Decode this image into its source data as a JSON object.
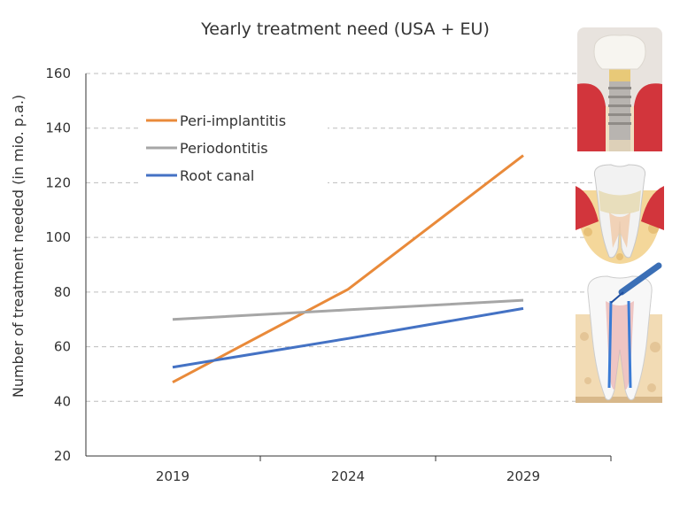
{
  "chart_data": {
    "type": "line",
    "title": "Yearly treatment need (USA + EU)",
    "xlabel": "",
    "ylabel": "Number of treatment needed (in mio. p.a.)",
    "categories": [
      "2019",
      "2024",
      "2029"
    ],
    "ylim": [
      20,
      160
    ],
    "yticks": [
      20,
      40,
      60,
      80,
      100,
      120,
      140,
      160
    ],
    "grid": true,
    "legend_position": "top-left",
    "series": [
      {
        "name": "Peri-implantitis",
        "color": "#e98a3a",
        "values": [
          47,
          81,
          130
        ]
      },
      {
        "name": "Periodontitis",
        "color": "#a6a6a6",
        "values": [
          70,
          73.5,
          77
        ]
      },
      {
        "name": "Root canal",
        "color": "#4472c4",
        "values": [
          52.5,
          63,
          74
        ]
      }
    ]
  },
  "illustrations": [
    {
      "name": "peri-implantitis-illustration"
    },
    {
      "name": "periodontitis-illustration"
    },
    {
      "name": "root-canal-illustration"
    }
  ]
}
